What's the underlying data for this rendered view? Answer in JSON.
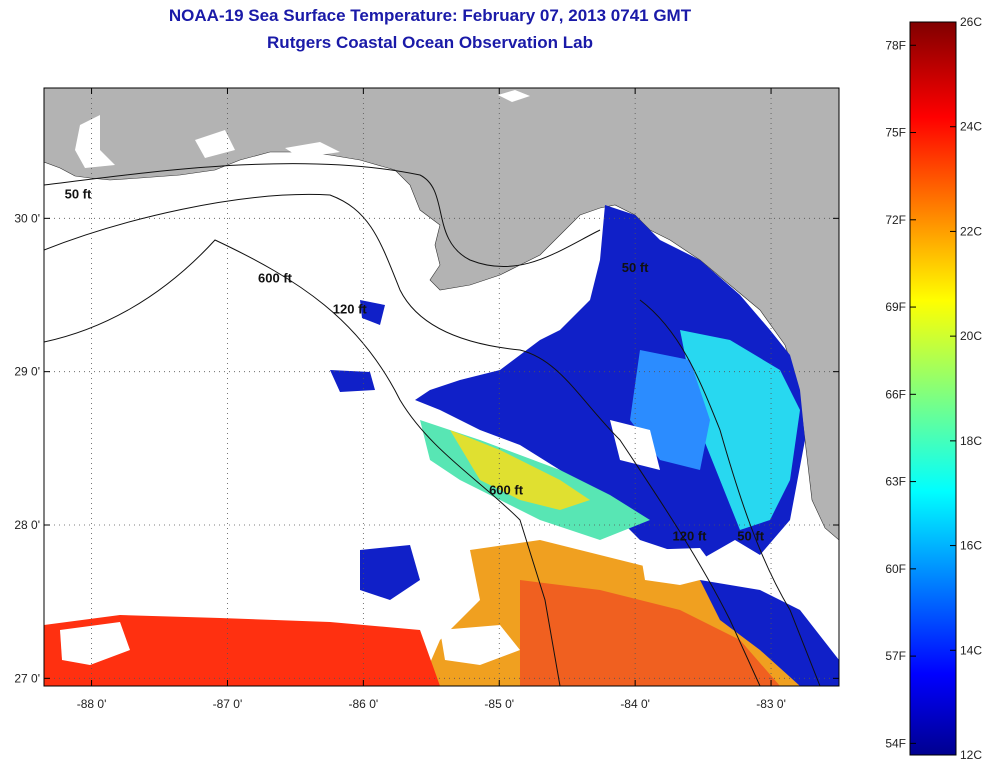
{
  "header": {
    "title_line1": "NOAA-19 Sea Surface Temperature:  February 07, 2013 0741 GMT",
    "title_line2": "Rutgers Coastal Ocean Observation Lab"
  },
  "map": {
    "lon_range": [
      -88.35,
      -82.5
    ],
    "lat_range": [
      26.95,
      30.85
    ],
    "lon_ticks": [
      -88,
      -87,
      -86,
      -85,
      -84,
      -83
    ],
    "lon_labels": [
      "-88 0'",
      "-87 0'",
      "-86 0'",
      "-85 0'",
      "-84 0'",
      "-83 0'"
    ],
    "lat_ticks": [
      27,
      28,
      29,
      30
    ],
    "lat_labels": [
      "27 0'",
      "28 0'",
      "29 0'",
      "30 0'"
    ],
    "grid": "dotted",
    "land_color": "#b3b3b3",
    "no_data_color": "#ffffff",
    "contour_labels": [
      {
        "text": "50 ft",
        "lon": -88.1,
        "lat": 30.13
      },
      {
        "text": "600 ft",
        "lon": -86.65,
        "lat": 29.58
      },
      {
        "text": "120 ft",
        "lon": -86.1,
        "lat": 29.38
      },
      {
        "text": "50 ft",
        "lon": -84.0,
        "lat": 29.65
      },
      {
        "text": "600 ft",
        "lon": -84.95,
        "lat": 28.2
      },
      {
        "text": "120 ft",
        "lon": -83.6,
        "lat": 27.9
      },
      {
        "text": "50 ft",
        "lon": -83.15,
        "lat": 27.9
      }
    ]
  },
  "colorbar": {
    "min_c": 12,
    "max_c": 26,
    "celsius_labels": [
      "26C",
      "24C",
      "22C",
      "20C",
      "18C",
      "16C",
      "14C",
      "12C"
    ],
    "fahrenheit_labels": [
      "78F",
      "75F",
      "72F",
      "69F",
      "66F",
      "63F",
      "60F",
      "57F",
      "54F"
    ],
    "colormap": "jet"
  }
}
